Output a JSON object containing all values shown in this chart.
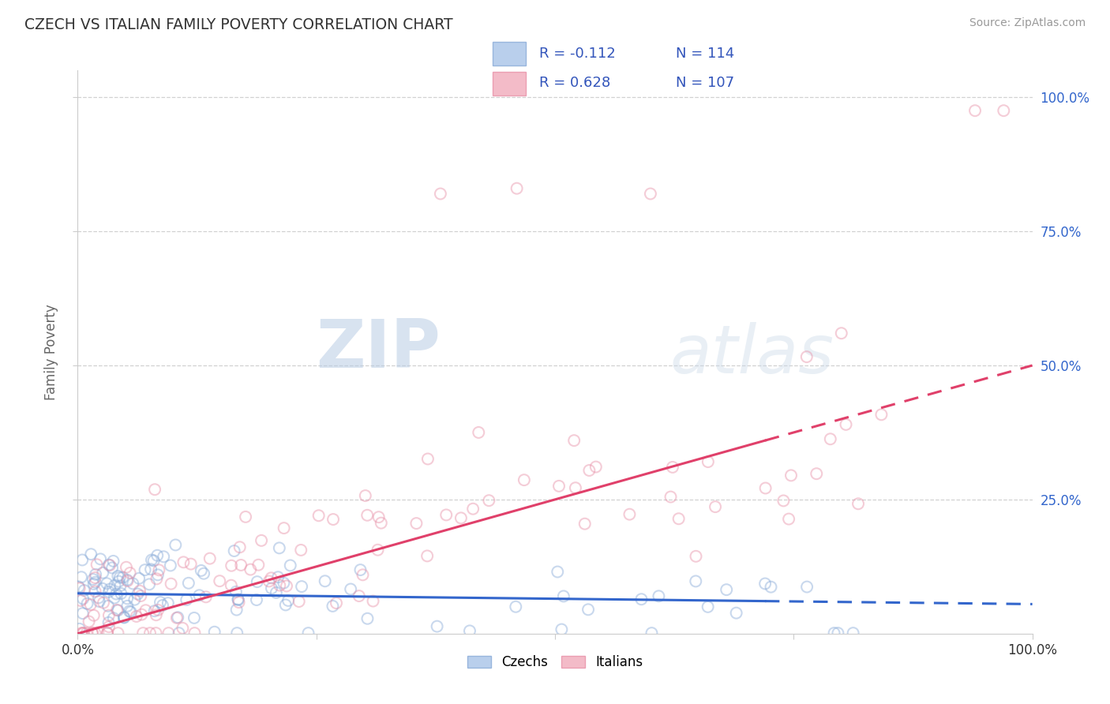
{
  "title": "CZECH VS ITALIAN FAMILY POVERTY CORRELATION CHART",
  "source_text": "Source: ZipAtlas.com",
  "ylabel": "Family Poverty",
  "watermark_zip": "ZIP",
  "watermark_atlas": "atlas",
  "xlim": [
    0.0,
    1.0
  ],
  "ylim": [
    0.0,
    1.05
  ],
  "ytick_labels": [
    "25.0%",
    "50.0%",
    "75.0%",
    "100.0%"
  ],
  "ytick_positions": [
    0.25,
    0.5,
    0.75,
    1.0
  ],
  "czech_color": "#a8c4e8",
  "italian_color": "#f0aabb",
  "czech_edge_color": "#88aad8",
  "italian_edge_color": "#e890a8",
  "czech_line_color": "#3366cc",
  "italian_line_color": "#e0406a",
  "czech_R": "-0.112",
  "czech_N": "114",
  "italian_R": "0.628",
  "italian_N": "107",
  "legend_R_color": "#3355bb",
  "legend_N_color": "#3355bb",
  "background_color": "#ffffff",
  "grid_color": "#cccccc",
  "title_color": "#333333",
  "axis_label_color": "#666666",
  "source_color": "#999999",
  "right_ytick_color": "#3366cc",
  "marker_size": 100,
  "marker_alpha": 0.45,
  "line_width": 2.2,
  "line_solid_end": 0.72,
  "italian_line_y0": 0.0,
  "italian_line_y1": 0.5,
  "czech_line_y0": 0.075,
  "czech_line_y1": 0.055
}
